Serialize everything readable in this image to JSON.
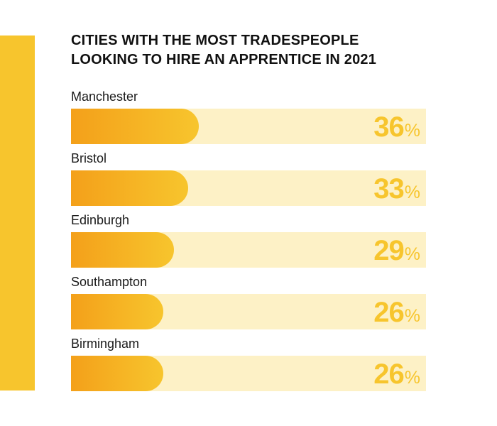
{
  "colors": {
    "accent": "#f7c52d",
    "bar_start": "#f4a01a",
    "bar_end": "#f7c52d",
    "track": "#fdf1c6"
  },
  "chart_data": {
    "type": "bar",
    "orientation": "horizontal",
    "title_lines": [
      "CITIES WITH THE MOST TRADESPEOPLE",
      "LOOKING TO HIRE AN APPRENTICE IN 2021"
    ],
    "categories": [
      "Manchester",
      "Bristol",
      "Edinburgh",
      "Southampton",
      "Birmingham"
    ],
    "values": [
      36,
      33,
      29,
      26,
      26
    ],
    "value_suffix": "%",
    "xlim": [
      0,
      100
    ],
    "grid": false,
    "legend": "none"
  }
}
